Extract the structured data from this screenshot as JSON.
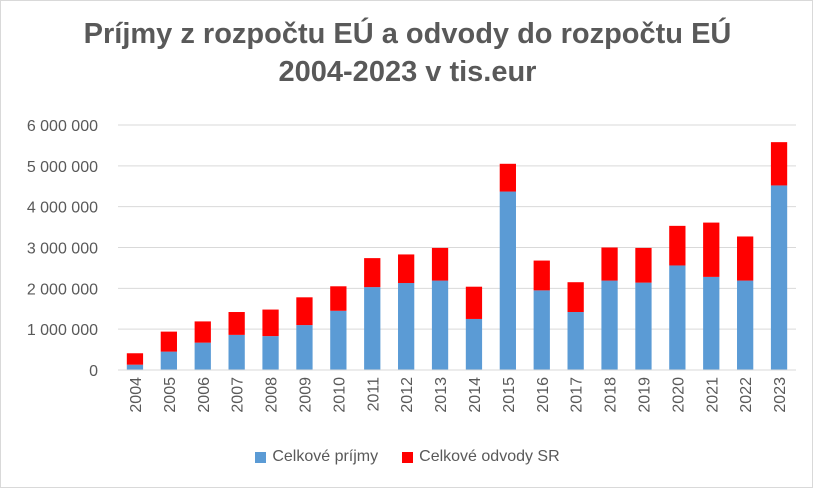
{
  "chart_data": {
    "type": "bar",
    "stacked": true,
    "title_lines": [
      "Príjmy z rozpočtu EÚ a odvody do rozpočtu EÚ",
      "2004-2023 v tis.eur"
    ],
    "xlabel": "",
    "ylabel": "",
    "ylim": [
      0,
      6000000
    ],
    "y_ticks": [
      0,
      1000000,
      2000000,
      3000000,
      4000000,
      5000000,
      6000000
    ],
    "y_tick_labels": [
      "0",
      "1 000 000",
      "2 000 000",
      "3 000 000",
      "4 000 000",
      "5 000 000",
      "6 000 000"
    ],
    "grid": "horizontal",
    "legend_position": "bottom",
    "categories": [
      "2004",
      "2005",
      "2006",
      "2007",
      "2008",
      "2009",
      "2010",
      "2011",
      "2012",
      "2013",
      "2014",
      "2015",
      "2016",
      "2017",
      "2018",
      "2019",
      "2020",
      "2021",
      "2022",
      "2023"
    ],
    "series": [
      {
        "name": "Celkové príjmy",
        "color": "#5b9bd5",
        "values": [
          130000,
          450000,
          670000,
          860000,
          830000,
          1100000,
          1450000,
          2030000,
          2130000,
          2190000,
          1250000,
          4370000,
          1950000,
          1420000,
          2190000,
          2140000,
          2560000,
          2280000,
          2190000,
          4520000
        ]
      },
      {
        "name": "Celkové odvody SR",
        "color": "#ff0000",
        "values": [
          280000,
          490000,
          520000,
          560000,
          650000,
          680000,
          600000,
          710000,
          700000,
          800000,
          790000,
          680000,
          730000,
          730000,
          810000,
          850000,
          970000,
          1330000,
          1080000,
          1060000
        ]
      }
    ]
  }
}
